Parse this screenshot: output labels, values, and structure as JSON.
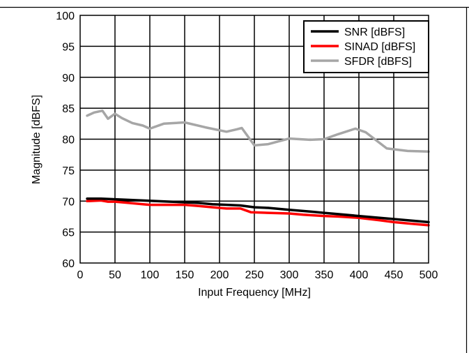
{
  "chart_data": {
    "type": "line",
    "title": "",
    "xlabel": "Input Frequency [MHz]",
    "ylabel": "Magnitude [dBFS]",
    "xlim": [
      0,
      500
    ],
    "ylim": [
      60,
      100
    ],
    "x_ticks": [
      0,
      50,
      100,
      150,
      200,
      250,
      300,
      350,
      400,
      450,
      500
    ],
    "y_ticks": [
      60,
      65,
      70,
      75,
      80,
      85,
      90,
      95,
      100
    ],
    "grid": true,
    "legend_position": "top-right",
    "series": [
      {
        "name": "SNR [dBFS]",
        "color": "#000000",
        "x": [
          10,
          30,
          50,
          70,
          90,
          110,
          130,
          150,
          170,
          190,
          210,
          230,
          250,
          270,
          300,
          330,
          350,
          370,
          400,
          430,
          450,
          470,
          500
        ],
        "values": [
          70.4,
          70.4,
          70.3,
          70.2,
          70.1,
          70.0,
          69.9,
          69.8,
          69.7,
          69.5,
          69.4,
          69.3,
          69.0,
          68.9,
          68.6,
          68.3,
          68.1,
          67.9,
          67.6,
          67.3,
          67.1,
          66.9,
          66.6
        ]
      },
      {
        "name": "SINAD [dBFS]",
        "color": "#ff0000",
        "x": [
          10,
          30,
          40,
          50,
          70,
          90,
          100,
          120,
          150,
          170,
          190,
          210,
          230,
          245,
          270,
          300,
          320,
          350,
          370,
          400,
          430,
          450,
          470,
          500
        ],
        "values": [
          70.0,
          70.1,
          69.9,
          69.9,
          69.7,
          69.5,
          69.4,
          69.4,
          69.4,
          69.2,
          69.0,
          68.8,
          68.8,
          68.2,
          68.1,
          68.0,
          67.8,
          67.6,
          67.5,
          67.3,
          66.9,
          66.6,
          66.4,
          66.1
        ]
      },
      {
        "name": "SFDR [dBFS]",
        "color": "#a6a6a6",
        "x": [
          10,
          20,
          32,
          40,
          50,
          60,
          75,
          90,
          100,
          120,
          150,
          180,
          210,
          225,
          232,
          250,
          270,
          300,
          330,
          350,
          370,
          395,
          410,
          440,
          470,
          500
        ],
        "values": [
          83.8,
          84.3,
          84.6,
          83.3,
          84.1,
          83.4,
          82.6,
          82.2,
          81.7,
          82.5,
          82.7,
          81.9,
          81.2,
          81.6,
          81.8,
          79.0,
          79.2,
          80.1,
          79.9,
          80.0,
          80.8,
          81.7,
          81.1,
          78.5,
          78.1,
          78.0
        ]
      }
    ]
  }
}
